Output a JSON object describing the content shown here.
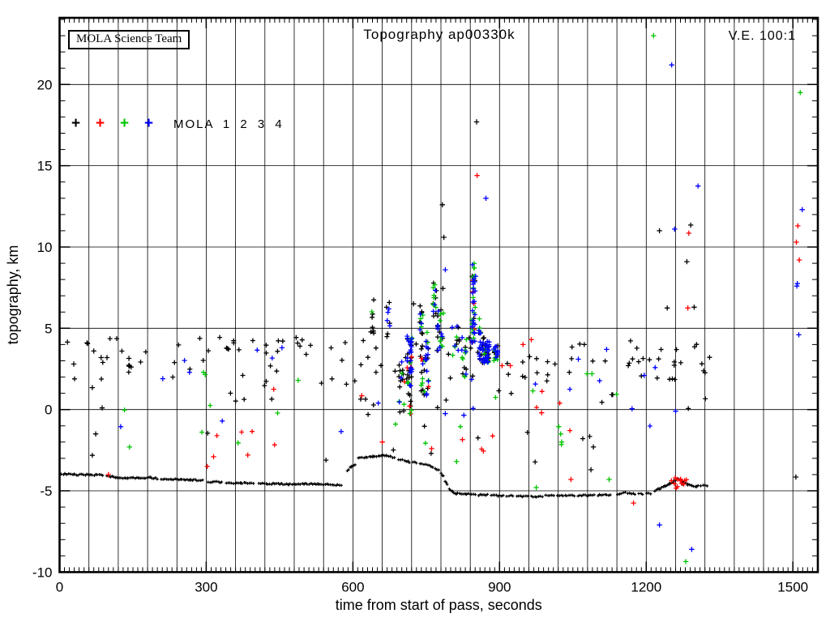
{
  "figure": {
    "title": "Topography ap00330k",
    "ve_label": "V.E. 100:1",
    "watermark": "MOLA Science Team",
    "legend_label": "MOLA 1 2 3 4"
  },
  "chart_data": {
    "type": "scatter",
    "title": "Topography ap00330k",
    "xlabel": "time from start of pass, seconds",
    "ylabel": "topography, km",
    "xlim": [
      0,
      1551
    ],
    "ylim": [
      -10,
      24.1
    ],
    "x_major_ticks": [
      0,
      300,
      600,
      900,
      1200,
      1500
    ],
    "x_grid_step_seconds": 60,
    "x_minor_tick_seconds": 10,
    "y_major_ticks": [
      -10,
      -5,
      0,
      5,
      10,
      15,
      20
    ],
    "y_minor_tick_km": 1,
    "grid": true,
    "legend_position": "top-left-inside",
    "marker": "plus",
    "channels": [
      {
        "id": 1,
        "name": "MOLA 1",
        "color": "#000000"
      },
      {
        "id": 2,
        "name": "MOLA 2",
        "color": "#ff0000"
      },
      {
        "id": 3,
        "name": "MOLA 3",
        "color": "#00c400"
      },
      {
        "id": 4,
        "name": "MOLA 4",
        "color": "#0000ff"
      }
    ],
    "ground_track_segments": [
      [
        [
          4,
          -3.95
        ],
        [
          30,
          -4.0
        ],
        [
          60,
          -4.0
        ],
        [
          88,
          -4.05
        ]
      ],
      [
        [
          97,
          -4.1
        ],
        [
          115,
          -4.15
        ],
        [
          140,
          -4.22
        ],
        [
          162,
          -4.18
        ],
        [
          186,
          -4.2
        ],
        [
          200,
          -4.24
        ]
      ],
      [
        [
          208,
          -4.3
        ],
        [
          240,
          -4.3
        ],
        [
          268,
          -4.33
        ],
        [
          292,
          -4.36
        ]
      ],
      [
        [
          304,
          -4.45
        ],
        [
          332,
          -4.46
        ]
      ],
      [
        [
          341,
          -4.5
        ],
        [
          370,
          -4.53
        ],
        [
          396,
          -4.5
        ]
      ],
      [
        [
          408,
          -4.55
        ],
        [
          440,
          -4.56
        ],
        [
          468,
          -4.6
        ],
        [
          500,
          -4.57
        ],
        [
          528,
          -4.6
        ],
        [
          558,
          -4.62
        ],
        [
          576,
          -4.66
        ]
      ],
      [
        [
          588,
          -3.75
        ],
        [
          597,
          -3.5
        ],
        [
          605,
          -3.42
        ]
      ],
      [
        [
          611,
          -3.0
        ],
        [
          626,
          -2.95
        ],
        [
          641,
          -2.9
        ],
        [
          653,
          -2.86
        ],
        [
          661,
          -2.8
        ],
        [
          669,
          -2.83
        ],
        [
          677,
          -2.9
        ],
        [
          685,
          -2.96
        ]
      ],
      [
        [
          693,
          -3.05
        ],
        [
          701,
          -3.1
        ]
      ],
      [
        [
          707,
          -3.15
        ],
        [
          716,
          -3.22
        ]
      ],
      [
        [
          723,
          -3.25
        ],
        [
          729,
          -3.28
        ]
      ],
      [
        [
          737,
          -3.3
        ],
        [
          749,
          -3.36
        ]
      ],
      [
        [
          754,
          -3.42
        ],
        [
          763,
          -3.52
        ]
      ],
      [
        [
          769,
          -3.62
        ],
        [
          775,
          -3.72
        ]
      ],
      [
        [
          781,
          -3.92
        ],
        [
          785,
          -4.12
        ]
      ],
      [
        [
          789,
          -4.38
        ],
        [
          793,
          -4.62
        ]
      ],
      [
        [
          797,
          -4.92
        ],
        [
          803,
          -5.06
        ],
        [
          811,
          -5.16
        ],
        [
          832,
          -5.2
        ],
        [
          851,
          -5.21
        ]
      ],
      [
        [
          857,
          -5.26
        ],
        [
          875,
          -5.26
        ]
      ],
      [
        [
          883,
          -5.3
        ],
        [
          907,
          -5.3
        ]
      ],
      [
        [
          915,
          -5.31
        ],
        [
          927,
          -5.31
        ]
      ],
      [
        [
          935,
          -5.32
        ],
        [
          957,
          -5.33
        ]
      ],
      [
        [
          965,
          -5.36
        ],
        [
          987,
          -5.36
        ]
      ],
      [
        [
          995,
          -5.31
        ],
        [
          1011,
          -5.31
        ]
      ],
      [
        [
          1019,
          -5.31
        ],
        [
          1053,
          -5.3
        ]
      ],
      [
        [
          1061,
          -5.29
        ],
        [
          1093,
          -5.28
        ]
      ],
      [
        [
          1101,
          -5.26
        ],
        [
          1127,
          -5.25
        ]
      ],
      [
        [
          1141,
          -5.2
        ],
        [
          1157,
          -5.12
        ]
      ],
      [
        [
          1163,
          -5.16
        ],
        [
          1177,
          -5.21
        ]
      ],
      [
        [
          1185,
          -5.2
        ],
        [
          1193,
          -5.2
        ]
      ],
      [
        [
          1201,
          -5.16
        ],
        [
          1209,
          -5.16
        ]
      ],
      [
        [
          1218,
          -5.0
        ],
        [
          1228,
          -4.86
        ],
        [
          1238,
          -4.7
        ],
        [
          1248,
          -4.56
        ],
        [
          1257,
          -4.4
        ],
        [
          1264,
          -4.25
        ],
        [
          1271,
          -4.36
        ],
        [
          1277,
          -4.5
        ],
        [
          1285,
          -4.62
        ],
        [
          1293,
          -4.7
        ],
        [
          1302,
          -4.73
        ],
        [
          1311,
          -4.7
        ]
      ],
      [
        [
          1317,
          -4.7
        ],
        [
          1324,
          -4.7
        ]
      ]
    ],
    "points": [
      [
        16,
        4.15,
        1
      ],
      [
        29,
        2.8,
        1
      ],
      [
        56,
        4.1,
        1
      ],
      [
        70,
        3.6,
        1
      ],
      [
        85,
        3.2,
        1
      ],
      [
        97,
        3.2,
        1
      ],
      [
        67,
        1.35,
        1
      ],
      [
        87,
        0.1,
        1
      ],
      [
        74,
        -1.5,
        1
      ],
      [
        142,
        3.15,
        1
      ],
      [
        100,
        -4.0,
        2
      ],
      [
        125,
        -1.05,
        4
      ],
      [
        211,
        1.9,
        4
      ],
      [
        143,
        -2.3,
        3
      ],
      [
        298,
        2.15,
        3
      ],
      [
        302,
        -3.5,
        2
      ],
      [
        315,
        -2.9,
        2
      ],
      [
        365,
        -2.05,
        3
      ],
      [
        385,
        -2.8,
        2
      ],
      [
        438,
        1.25,
        2
      ],
      [
        455,
        3.8,
        4
      ],
      [
        488,
        1.8,
        3
      ],
      [
        576,
        -1.35,
        4
      ],
      [
        618,
        0.85,
        2
      ],
      [
        660,
        -2.0,
        2
      ],
      [
        724,
        6.5,
        1
      ],
      [
        739,
        5.6,
        3
      ],
      [
        761,
        -2.4,
        2
      ],
      [
        784,
        7.45,
        1
      ],
      [
        789,
        8.6,
        4
      ],
      [
        789,
        -0.25,
        4
      ],
      [
        812,
        -3.2,
        3
      ],
      [
        824,
        -1.85,
        2
      ],
      [
        827,
        -0.35,
        4
      ],
      [
        844,
        8.2,
        1
      ],
      [
        851,
        8.2,
        4
      ],
      [
        853,
        17.7,
        1
      ],
      [
        854,
        14.4,
        2
      ],
      [
        867,
        -2.55,
        2
      ],
      [
        872,
        13.0,
        4
      ],
      [
        783,
        12.6,
        1
      ],
      [
        786,
        10.6,
        1
      ],
      [
        905,
        2.7,
        2
      ],
      [
        922,
        2.7,
        2
      ],
      [
        948,
        4.0,
        2
      ],
      [
        965,
        4.3,
        2
      ],
      [
        968,
        1.15,
        3
      ],
      [
        975,
        -4.8,
        3
      ],
      [
        986,
        -0.2,
        2
      ],
      [
        1021,
        -1.05,
        3
      ],
      [
        1025,
        -1.5,
        3
      ],
      [
        1027,
        -2.0,
        3
      ],
      [
        1046,
        -4.3,
        2
      ],
      [
        1061,
        3.1,
        4
      ],
      [
        1079,
        2.2,
        3
      ],
      [
        1087,
        -3.7,
        1
      ],
      [
        1089,
        2.2,
        3
      ],
      [
        1092,
        -2.3,
        1
      ],
      [
        1119,
        3.7,
        4
      ],
      [
        1124,
        -4.3,
        3
      ],
      [
        1171,
        0.05,
        4
      ],
      [
        1174,
        -5.75,
        2
      ],
      [
        1196,
        2.1,
        4
      ],
      [
        1215,
        23.0,
        3
      ],
      [
        1227,
        11.0,
        1
      ],
      [
        1227,
        -7.1,
        4
      ],
      [
        1243,
        6.25,
        1
      ],
      [
        1252,
        21.2,
        4
      ],
      [
        1258,
        11.1,
        4
      ],
      [
        1260,
        -0.1,
        4
      ],
      [
        1281,
        -9.35,
        3
      ],
      [
        1283,
        9.1,
        1
      ],
      [
        1285,
        6.25,
        2
      ],
      [
        1287,
        10.85,
        2
      ],
      [
        1291,
        11.35,
        1
      ],
      [
        1293,
        -8.6,
        4
      ],
      [
        1298,
        6.3,
        1
      ],
      [
        1306,
        13.75,
        4
      ],
      [
        1506,
        -4.15,
        1
      ],
      [
        1507,
        10.3,
        2
      ],
      [
        1509,
        7.75,
        4
      ],
      [
        1510,
        11.3,
        2
      ],
      [
        1512,
        4.6,
        4
      ],
      [
        1513,
        9.2,
        2
      ],
      [
        1515,
        19.5,
        3
      ],
      [
        1519,
        12.3,
        4
      ],
      [
        1508,
        7.6,
        4
      ]
    ],
    "clusters": [
      {
        "t": 700,
        "dt": 6,
        "z0": -0.2,
        "z1": 3.0,
        "n": 16,
        "w": {
          "1": 0.4,
          "3": 0.25,
          "4": 0.25,
          "2": 0.1
        }
      },
      {
        "t": 716,
        "dt": 5,
        "z0": 1.4,
        "z1": 4.6,
        "n": 42,
        "w": {
          "4": 0.45,
          "3": 0.2,
          "1": 0.25,
          "2": 0.1
        }
      },
      {
        "t": 716,
        "dt": 4,
        "z0": -0.6,
        "z1": 1.2,
        "n": 8,
        "w": {
          "1": 0.5,
          "2": 0.2,
          "3": 0.3
        }
      },
      {
        "t": 747,
        "dt": 8,
        "z0": 0.8,
        "z1": 4.8,
        "n": 38,
        "w": {
          "4": 0.35,
          "3": 0.25,
          "1": 0.3,
          "2": 0.1
        }
      },
      {
        "t": 767,
        "dt": 4,
        "z0": 5.5,
        "z1": 7.9,
        "n": 16,
        "w": {
          "3": 0.5,
          "4": 0.3,
          "1": 0.2
        }
      },
      {
        "t": 779,
        "dt": 6,
        "z0": 3.4,
        "z1": 6.2,
        "n": 22,
        "w": {
          "4": 0.45,
          "3": 0.3,
          "1": 0.25
        }
      },
      {
        "t": 739,
        "dt": 4,
        "z0": 4.8,
        "z1": 6.4,
        "n": 10,
        "w": {
          "3": 0.4,
          "1": 0.4,
          "4": 0.2
        }
      },
      {
        "t": 810,
        "dt": 8,
        "z0": 3.2,
        "z1": 5.2,
        "n": 12,
        "w": {
          "1": 0.45,
          "4": 0.3,
          "3": 0.25
        }
      },
      {
        "t": 828,
        "dt": 6,
        "z0": 2.0,
        "z1": 4.5,
        "n": 14,
        "w": {
          "1": 0.5,
          "4": 0.3,
          "3": 0.2
        }
      },
      {
        "t": 846,
        "dt": 4,
        "z0": 3.8,
        "z1": 8.3,
        "n": 42,
        "w": {
          "4": 0.45,
          "3": 0.35,
          "1": 0.1,
          "2": 0.1
        }
      },
      {
        "t": 846,
        "dt": 3,
        "z0": 8.3,
        "z1": 9.3,
        "n": 4,
        "w": {
          "4": 0.6,
          "3": 0.4
        }
      },
      {
        "t": 862,
        "dt": 6,
        "z0": 4.3,
        "z1": 5.6,
        "n": 10,
        "w": {
          "4": 0.5,
          "3": 0.3,
          "1": 0.2
        }
      },
      {
        "t": 868,
        "dt": 11,
        "z0": 2.8,
        "z1": 4.2,
        "n": 52,
        "w": {
          "4": 0.6,
          "3": 0.2,
          "1": 0.2
        }
      },
      {
        "t": 893,
        "dt": 7,
        "z0": 2.9,
        "z1": 3.9,
        "n": 16,
        "w": {
          "4": 0.5,
          "3": 0.3,
          "1": 0.2
        }
      },
      {
        "t": 640,
        "dt": 4,
        "z0": 4.4,
        "z1": 6.8,
        "n": 8,
        "w": {
          "1": 0.8,
          "3": 0.2
        }
      },
      {
        "t": 672,
        "dt": 4,
        "z0": 4.3,
        "z1": 6.9,
        "n": 9,
        "w": {
          "1": 0.7,
          "4": 0.3
        }
      },
      {
        "t": 1268,
        "dt": 18,
        "z0": -4.9,
        "z1": -4.2,
        "n": 14,
        "w": {
          "2": 0.85,
          "1": 0.15
        }
      }
    ],
    "bands": [
      {
        "t0": 5,
        "t1": 1330,
        "z0": 1.7,
        "z1": 4.45,
        "n": 105,
        "w": {
          "1": 1
        }
      },
      {
        "t0": 5,
        "t1": 1330,
        "z0": 0.0,
        "z1": 1.7,
        "n": 20,
        "w": {
          "1": 1
        }
      },
      {
        "t0": 60,
        "t1": 1100,
        "z0": -3.4,
        "z1": -0.3,
        "n": 12,
        "w": {
          "1": 1
        }
      },
      {
        "t0": 120,
        "t1": 1140,
        "z0": -2.5,
        "z1": 2.6,
        "n": 12,
        "w": {
          "3": 1
        }
      },
      {
        "t0": 280,
        "t1": 1060,
        "z0": -3.5,
        "z1": 1.5,
        "n": 10,
        "w": {
          "2": 1
        }
      },
      {
        "t0": 120,
        "t1": 1230,
        "z0": -1.3,
        "z1": 3.9,
        "n": 13,
        "w": {
          "4": 1
        }
      },
      {
        "t0": 340,
        "t1": 560,
        "z0": 3.4,
        "z1": 4.3,
        "n": 10,
        "w": {
          "1": 1
        }
      }
    ]
  }
}
